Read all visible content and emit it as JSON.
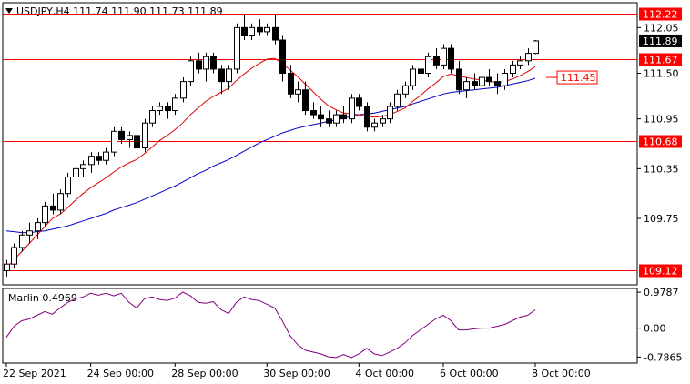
{
  "chart_data": {
    "type": "candlestick",
    "header": {
      "symbol": "USDJPY,H4",
      "ohlc": "111.74 111.90 111.73 111.89",
      "text": "USDJPY,H4  111.74 111.90 111.73 111.89"
    },
    "price_ylim": [
      108.95,
      112.35
    ],
    "price_ticks": [
      "112.05",
      "111.50",
      "110.95",
      "110.35",
      "109.75"
    ],
    "horizontal_levels": [
      {
        "label": "112.22",
        "value": 112.22
      },
      {
        "label": "111.67",
        "value": 111.67
      },
      {
        "label": "110.68",
        "value": 110.68
      },
      {
        "label": "109.12",
        "value": 109.12
      }
    ],
    "target_label": {
      "label": "111.45",
      "value": 111.45
    },
    "current_price": {
      "label": "111.89",
      "value": 111.89
    },
    "x_labels": [
      {
        "label": "22 Sep 2021",
        "index": 0
      },
      {
        "label": "24 Sep 00:00",
        "index": 11
      },
      {
        "label": "28 Sep 00:00",
        "index": 22
      },
      {
        "label": "30 Sep 00:00",
        "index": 34
      },
      {
        "label": "4 Oct 00:00",
        "index": 46
      },
      {
        "label": "6 Oct 00:00",
        "index": 57
      },
      {
        "label": "8 Oct 00:00",
        "index": 69
      }
    ],
    "candles": [
      [
        109.12,
        109.25,
        109.05,
        109.2
      ],
      [
        109.2,
        109.45,
        109.15,
        109.4
      ],
      [
        109.4,
        109.6,
        109.35,
        109.55
      ],
      [
        109.55,
        109.7,
        109.45,
        109.6
      ],
      [
        109.6,
        109.75,
        109.5,
        109.7
      ],
      [
        109.7,
        109.95,
        109.65,
        109.9
      ],
      [
        109.9,
        110.05,
        109.8,
        109.85
      ],
      [
        109.85,
        110.1,
        109.8,
        110.05
      ],
      [
        110.05,
        110.3,
        110.0,
        110.25
      ],
      [
        110.25,
        110.4,
        110.15,
        110.35
      ],
      [
        110.35,
        110.45,
        110.25,
        110.4
      ],
      [
        110.4,
        110.55,
        110.3,
        110.5
      ],
      [
        110.5,
        110.55,
        110.4,
        110.45
      ],
      [
        110.45,
        110.6,
        110.4,
        110.55
      ],
      [
        110.55,
        110.85,
        110.5,
        110.8
      ],
      [
        110.8,
        110.85,
        110.65,
        110.7
      ],
      [
        110.7,
        110.8,
        110.6,
        110.75
      ],
      [
        110.75,
        110.8,
        110.55,
        110.6
      ],
      [
        110.6,
        110.95,
        110.55,
        110.9
      ],
      [
        110.9,
        111.1,
        110.85,
        111.05
      ],
      [
        111.05,
        111.15,
        111.0,
        111.1
      ],
      [
        111.1,
        111.15,
        110.95,
        111.05
      ],
      [
        111.05,
        111.25,
        111.0,
        111.2
      ],
      [
        111.2,
        111.45,
        111.15,
        111.4
      ],
      [
        111.4,
        111.7,
        111.35,
        111.65
      ],
      [
        111.65,
        111.75,
        111.5,
        111.55
      ],
      [
        111.55,
        111.75,
        111.4,
        111.7
      ],
      [
        111.7,
        111.75,
        111.5,
        111.55
      ],
      [
        111.55,
        111.6,
        111.25,
        111.4
      ],
      [
        111.4,
        111.6,
        111.3,
        111.55
      ],
      [
        111.55,
        112.1,
        111.5,
        112.05
      ],
      [
        112.05,
        112.2,
        111.9,
        111.95
      ],
      [
        111.95,
        112.1,
        111.9,
        112.05
      ],
      [
        112.05,
        112.15,
        111.95,
        112.0
      ],
      [
        112.0,
        112.1,
        111.95,
        112.05
      ],
      [
        112.05,
        112.2,
        111.85,
        111.9
      ],
      [
        111.9,
        111.95,
        111.4,
        111.5
      ],
      [
        111.5,
        111.6,
        111.2,
        111.25
      ],
      [
        111.25,
        111.4,
        111.15,
        111.3
      ],
      [
        111.3,
        111.4,
        111.0,
        111.05
      ],
      [
        111.05,
        111.15,
        110.95,
        111.0
      ],
      [
        111.0,
        111.1,
        110.85,
        110.95
      ],
      [
        110.95,
        111.05,
        110.85,
        110.9
      ],
      [
        110.9,
        111.05,
        110.85,
        111.0
      ],
      [
        111.0,
        111.1,
        110.9,
        110.95
      ],
      [
        110.95,
        111.25,
        110.9,
        111.2
      ],
      [
        111.2,
        111.25,
        111.05,
        111.1
      ],
      [
        111.1,
        111.15,
        110.8,
        110.85
      ],
      [
        110.85,
        110.95,
        110.8,
        110.9
      ],
      [
        110.9,
        111.0,
        110.85,
        110.95
      ],
      [
        110.95,
        111.15,
        110.9,
        111.1
      ],
      [
        111.1,
        111.3,
        111.05,
        111.25
      ],
      [
        111.25,
        111.4,
        111.2,
        111.35
      ],
      [
        111.35,
        111.6,
        111.3,
        111.55
      ],
      [
        111.55,
        111.7,
        111.4,
        111.5
      ],
      [
        111.5,
        111.75,
        111.45,
        111.7
      ],
      [
        111.7,
        111.8,
        111.55,
        111.6
      ],
      [
        111.6,
        111.85,
        111.55,
        111.8
      ],
      [
        111.8,
        111.85,
        111.5,
        111.55
      ],
      [
        111.55,
        111.65,
        111.25,
        111.3
      ],
      [
        111.3,
        111.45,
        111.2,
        111.4
      ],
      [
        111.4,
        111.5,
        111.3,
        111.35
      ],
      [
        111.35,
        111.5,
        111.3,
        111.45
      ],
      [
        111.45,
        111.55,
        111.35,
        111.4
      ],
      [
        111.4,
        111.5,
        111.25,
        111.35
      ],
      [
        111.35,
        111.55,
        111.3,
        111.5
      ],
      [
        111.5,
        111.65,
        111.45,
        111.6
      ],
      [
        111.6,
        111.7,
        111.55,
        111.65
      ],
      [
        111.65,
        111.8,
        111.6,
        111.74
      ],
      [
        111.74,
        111.9,
        111.73,
        111.89
      ]
    ],
    "ma_fast": [
      109.15,
      109.25,
      109.35,
      109.45,
      109.55,
      109.65,
      109.75,
      109.8,
      109.88,
      109.97,
      110.05,
      110.12,
      110.18,
      110.24,
      110.31,
      110.37,
      110.42,
      110.46,
      110.53,
      110.61,
      110.69,
      110.75,
      110.82,
      110.9,
      111.0,
      111.08,
      111.16,
      111.22,
      111.27,
      111.32,
      111.41,
      111.49,
      111.56,
      111.62,
      111.67,
      111.68,
      111.62,
      111.54,
      111.46,
      111.37,
      111.28,
      111.19,
      111.11,
      111.06,
      111.02,
      111.01,
      111.0,
      110.98,
      110.97,
      110.98,
      111.0,
      111.04,
      111.08,
      111.16,
      111.23,
      111.31,
      111.38,
      111.46,
      111.49,
      111.47,
      111.45,
      111.43,
      111.42,
      111.4,
      111.39,
      111.4,
      111.43,
      111.47,
      111.52,
      111.58
    ],
    "ma_slow": [
      109.6,
      109.59,
      109.58,
      109.58,
      109.59,
      109.6,
      109.62,
      109.64,
      109.66,
      109.69,
      109.72,
      109.75,
      109.78,
      109.81,
      109.85,
      109.88,
      109.91,
      109.94,
      109.98,
      110.02,
      110.06,
      110.1,
      110.14,
      110.19,
      110.24,
      110.29,
      110.33,
      110.38,
      110.42,
      110.46,
      110.51,
      110.56,
      110.61,
      110.66,
      110.7,
      110.74,
      110.78,
      110.81,
      110.84,
      110.86,
      110.88,
      110.9,
      110.92,
      110.94,
      110.96,
      110.98,
      111.0,
      111.01,
      111.02,
      111.04,
      111.06,
      111.08,
      111.1,
      111.13,
      111.16,
      111.19,
      111.22,
      111.25,
      111.27,
      111.28,
      111.29,
      111.3,
      111.31,
      111.32,
      111.33,
      111.35,
      111.37,
      111.39,
      111.41,
      111.44
    ],
    "marlin": {
      "label": "Marlin 0.4969",
      "ylim": [
        -0.95,
        1.08
      ],
      "ticks": [
        "0.9787",
        "0.00",
        "-0.7865"
      ],
      "values": [
        -0.25,
        0.05,
        0.2,
        0.25,
        0.35,
        0.45,
        0.38,
        0.55,
        0.7,
        0.8,
        0.85,
        0.95,
        0.9,
        0.95,
        0.88,
        0.95,
        0.7,
        0.55,
        0.8,
        0.85,
        0.78,
        0.75,
        0.82,
        0.98,
        0.88,
        0.7,
        0.68,
        0.72,
        0.5,
        0.4,
        0.7,
        0.85,
        0.78,
        0.75,
        0.65,
        0.55,
        0.2,
        -0.2,
        -0.45,
        -0.6,
        -0.65,
        -0.7,
        -0.78,
        -0.8,
        -0.72,
        -0.8,
        -0.7,
        -0.55,
        -0.7,
        -0.75,
        -0.65,
        -0.55,
        -0.4,
        -0.2,
        -0.05,
        0.1,
        0.25,
        0.35,
        0.2,
        -0.05,
        -0.05,
        -0.02,
        0.0,
        0.0,
        0.05,
        0.1,
        0.2,
        0.3,
        0.35,
        0.5
      ]
    }
  }
}
